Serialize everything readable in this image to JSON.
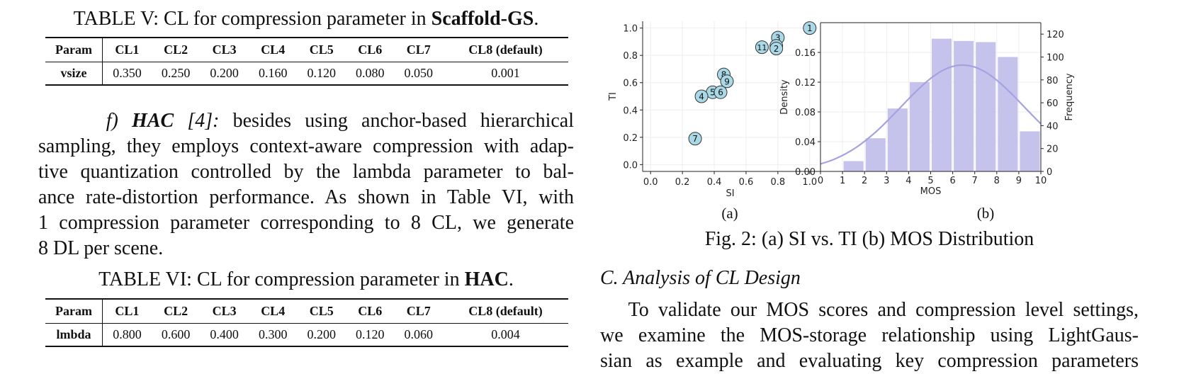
{
  "table5": {
    "caption_prefix": "TABLE V: CL for compression parameter in ",
    "caption_bold": "Scaffold-GS",
    "caption_suffix": ".",
    "header": [
      "Param",
      "CL1",
      "CL2",
      "CL3",
      "CL4",
      "CL5",
      "CL6",
      "CL7",
      "CL8 (default)"
    ],
    "row": [
      "vsize",
      "0.350",
      "0.250",
      "0.200",
      "0.160",
      "0.120",
      "0.080",
      "0.050",
      "0.001"
    ]
  },
  "hac_paragraph": {
    "label": "f)",
    "title": "HAC",
    "cite": "[4]:",
    "lines": [
      "besides using anchor-based hierarchical",
      "sampling, they employs context-aware compression with adap-",
      "tive quantization controlled by the lambda parameter to bal-",
      "ance rate-distortion performance. As shown in Table VI, with",
      "1 compression parameter corresponding to 8 CL, we generate",
      "8 DL per scene."
    ]
  },
  "table6": {
    "caption_prefix": "TABLE VI: CL for compression parameter in ",
    "caption_bold": "HAC",
    "caption_suffix": ".",
    "header": [
      "Param",
      "CL1",
      "CL2",
      "CL3",
      "CL4",
      "CL5",
      "CL6",
      "CL7",
      "CL8 (default)"
    ],
    "row": [
      "lmbda",
      "0.800",
      "0.600",
      "0.400",
      "0.300",
      "0.200",
      "0.120",
      "0.060",
      "0.004"
    ]
  },
  "figure": {
    "caption": "Fig. 2: (a) SI vs. TI (b) MOS Distribution",
    "sublabel_a": "(a)",
    "sublabel_b": "(b)"
  },
  "section": {
    "heading": "C. Analysis of CL Design",
    "lines": [
      "To validate our MOS scores and compression level settings,",
      "we examine the MOS-storage relationship using LightGaus-",
      "sian as example and evaluating key compression parameters"
    ]
  },
  "chart_data": [
    {
      "type": "scatter",
      "xlabel": "SI",
      "ylabel": "TI",
      "xlim": [
        -0.05,
        1.05
      ],
      "ylim": [
        -0.05,
        1.05
      ],
      "xticks": [
        "0.0",
        "0.2",
        "0.4",
        "0.6",
        "0.8",
        "1.0"
      ],
      "yticks": [
        "0.0",
        "0.2",
        "0.4",
        "0.6",
        "0.8",
        "1.0"
      ],
      "grid": true,
      "marker_color": "#a9d8e6",
      "points": [
        {
          "label": "1",
          "x": 1.0,
          "y": 1.0
        },
        {
          "label": "3",
          "x": 0.8,
          "y": 0.93
        },
        {
          "label": "10",
          "x": 0.79,
          "y": 0.87
        },
        {
          "label": "11",
          "x": 0.7,
          "y": 0.86
        },
        {
          "label": "2",
          "x": 0.79,
          "y": 0.85
        },
        {
          "label": "8",
          "x": 0.46,
          "y": 0.66
        },
        {
          "label": "9",
          "x": 0.48,
          "y": 0.61
        },
        {
          "label": "5",
          "x": 0.39,
          "y": 0.53
        },
        {
          "label": "6",
          "x": 0.44,
          "y": 0.53
        },
        {
          "label": "4",
          "x": 0.32,
          "y": 0.5
        },
        {
          "label": "7",
          "x": 0.28,
          "y": 0.19
        }
      ]
    },
    {
      "type": "bar",
      "xlabel": "MOS",
      "ylabel": "Density",
      "ylabel_right": "Frequency",
      "xlim": [
        0,
        10
      ],
      "ylim": [
        0,
        0.2
      ],
      "ylim_right": [
        0,
        130
      ],
      "xticks": [
        "0",
        "1",
        "2",
        "3",
        "4",
        "5",
        "6",
        "7",
        "8",
        "9",
        "10"
      ],
      "yticks": [
        "0.00",
        "0.04",
        "0.08",
        "0.12",
        "0.16"
      ],
      "yticks_right": [
        "0",
        "20",
        "40",
        "60",
        "80",
        "100",
        "120"
      ],
      "bar_color": "#c5c3ec",
      "curve_color": "#a6a2e0",
      "grid": true,
      "bins": [
        {
          "start": 1,
          "end": 2,
          "frequency": 9
        },
        {
          "start": 2,
          "end": 3,
          "frequency": 29
        },
        {
          "start": 3,
          "end": 4,
          "frequency": 55
        },
        {
          "start": 4,
          "end": 5,
          "frequency": 78
        },
        {
          "start": 5,
          "end": 6,
          "frequency": 116
        },
        {
          "start": 6,
          "end": 7,
          "frequency": 114
        },
        {
          "start": 7,
          "end": 8,
          "frequency": 113
        },
        {
          "start": 8,
          "end": 9,
          "frequency": 100
        },
        {
          "start": 9,
          "end": 10,
          "frequency": 35
        }
      ],
      "kde": {
        "mean": 6.45,
        "sd": 2.8,
        "peak_density": 0.143,
        "left_density": 0.01
      }
    }
  ]
}
